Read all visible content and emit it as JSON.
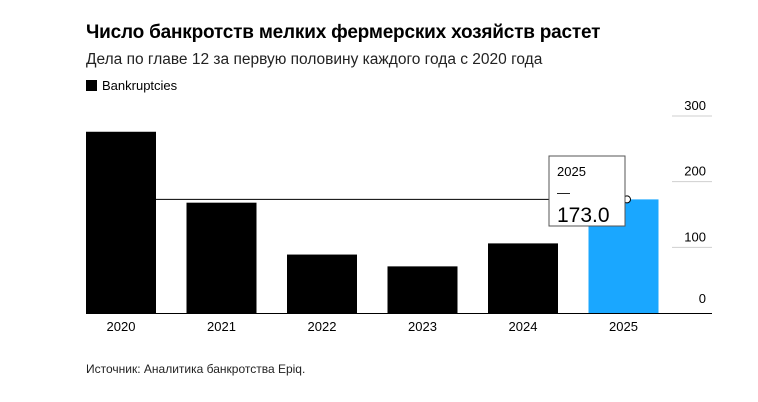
{
  "header": {
    "title": "Число банкротств мелких фермерских хозяйств растет",
    "subtitle": "Дела по главе 12 за первую половину каждого года с 2020 года"
  },
  "legend": {
    "label": "Bankruptcies",
    "color": "#000000"
  },
  "tooltip": {
    "year": "2025",
    "dash": "—",
    "value": "173.0"
  },
  "source": "Источник: Аналитика банкротства Epiq.",
  "colors": {
    "bar": "#000000",
    "highlight": "#1aa7ff",
    "grid": "#cfcfcf"
  },
  "chart_data": {
    "type": "bar",
    "categories": [
      "2020",
      "2021",
      "2022",
      "2023",
      "2024",
      "2025"
    ],
    "series": [
      {
        "name": "Bankruptcies",
        "values": [
          276,
          168,
          89,
          71,
          106,
          173
        ]
      }
    ],
    "highlight_index": 5,
    "ylim": [
      0,
      300
    ],
    "yticks": [
      0,
      100,
      200,
      300
    ],
    "ytick_position": "right",
    "reference_line_value": 173,
    "grid": true,
    "legend_position": "top-left"
  }
}
